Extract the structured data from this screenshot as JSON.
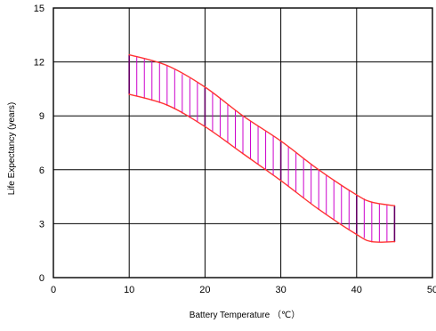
{
  "chart_data": {
    "type": "area",
    "xlabel": "Battery Temperature （℃）",
    "ylabel": "Life Expectancy (years)",
    "xlim": [
      0,
      50
    ],
    "ylim": [
      0,
      15
    ],
    "x_ticks": [
      0,
      10,
      20,
      30,
      40,
      50
    ],
    "y_ticks": [
      0,
      3,
      6,
      9,
      12,
      15
    ],
    "grid": true,
    "band": {
      "x": [
        10,
        15,
        20,
        25,
        30,
        35,
        40,
        42,
        45
      ],
      "upper": [
        12.4,
        11.8,
        10.6,
        9.0,
        7.6,
        6.0,
        4.6,
        4.2,
        4.0
      ],
      "lower": [
        10.2,
        9.6,
        8.4,
        6.9,
        5.4,
        3.8,
        2.4,
        2.0,
        2.0
      ]
    },
    "colors": {
      "boundary": "#ff3333",
      "hatch": "#cc00cc",
      "hatch_strong": "#660066",
      "grid": "#000000"
    }
  }
}
